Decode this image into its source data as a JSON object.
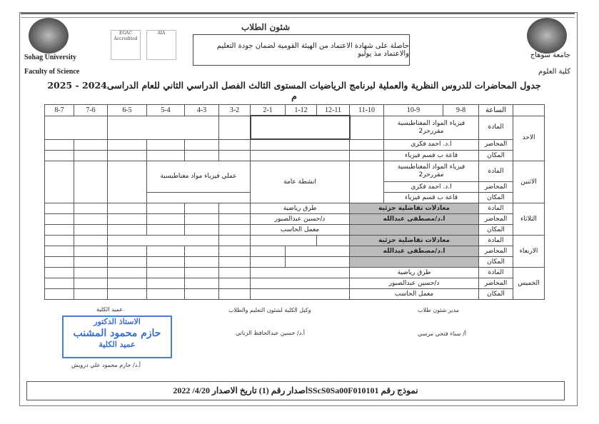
{
  "header": {
    "university_en": "Sohag University",
    "faculty_en": "Faculty of Science",
    "university_ar": "جامعة سوهاج",
    "faculty_ar": "كلية العلوم",
    "strap": "شئون الطلاب",
    "accreditation": "حاصلة على شهادة الاعتماد من الهيئة القومية لضمان جودة التعليم والاعتماد مذ يوليو",
    "cert1": "EGAC Accredited",
    "cert2": "AIA"
  },
  "title": "جدول المحاضرات للدروس النظرية والعملية لبرنامج الرياضيات المستوى الثالث الفصل الدراسي الثاني للعام الدراسى2024 - 2025 م",
  "table": {
    "hour_label": "الساعة",
    "hours": [
      "9-8",
      "10-9",
      "11-10",
      "12-11",
      "1-12",
      "2-1",
      "3-2",
      "4-3",
      "5-4",
      "6-5",
      "7-6",
      "8-7"
    ],
    "row_labels": {
      "subject": "المادة",
      "lecturer": "المحاضر",
      "place": "المكان"
    },
    "days": [
      {
        "name": "الاحد",
        "subject": "فيزياء المواد المغناطيسية مقررحر2",
        "lecturer": "ا.د. احمد فكرى",
        "place": "قاعة ب قسم فيزياء"
      },
      {
        "name": "الاثنين",
        "subject": "فيزياء المواد المغناطيسية مقررحر2",
        "lecturer": "ا.د. احمد فكرى",
        "place": "قاعة ب قسم فيزياء",
        "activities": "انشطة عامة",
        "lab": "عملي  فيزياء مواد مغناطيسية"
      },
      {
        "name": "الثلاثاء",
        "subject": "معادلات تفاضلية جزئية",
        "lecturer": "ا.د/مصطفى عبدالله",
        "subject2": "طرق رياضية",
        "lecturer2": "د/حسين عبدالصبور",
        "place2": "معمل الحاسب"
      },
      {
        "name": "الاربعاء",
        "subject": "معادلات تفاضلية جزئية",
        "lecturer": "ا.د/مصطفى عبدالله"
      },
      {
        "name": "الخميس",
        "subject": "طرق رياضية",
        "lecturer": "د/حسين عبدالصبور",
        "place": "معمل الحاسب"
      }
    ]
  },
  "signatures": {
    "student_affairs_title": "مدير شئون طلاب",
    "student_affairs_name": "أ/ سناء فتحي مرسي",
    "vice_dean_title": "وكيل الكلية لشئون التعليم والطلاب",
    "vice_dean_name": "أ.د/ حسين عبدالحافظ الزناتي",
    "dean_title": "عميد الكلية",
    "dean_name": "أ.د/ حازم محمود علي درويش",
    "stamp_line1": "الاستاذ الدكتور",
    "stamp_line2": "حازم محمود المشنب",
    "stamp_line3": "عميد الكلية"
  },
  "footer": "نموذج رقم SScS0Sa00F010101اصدار رقم (1) تاريخ الاصدار 4/20/ 2022"
}
